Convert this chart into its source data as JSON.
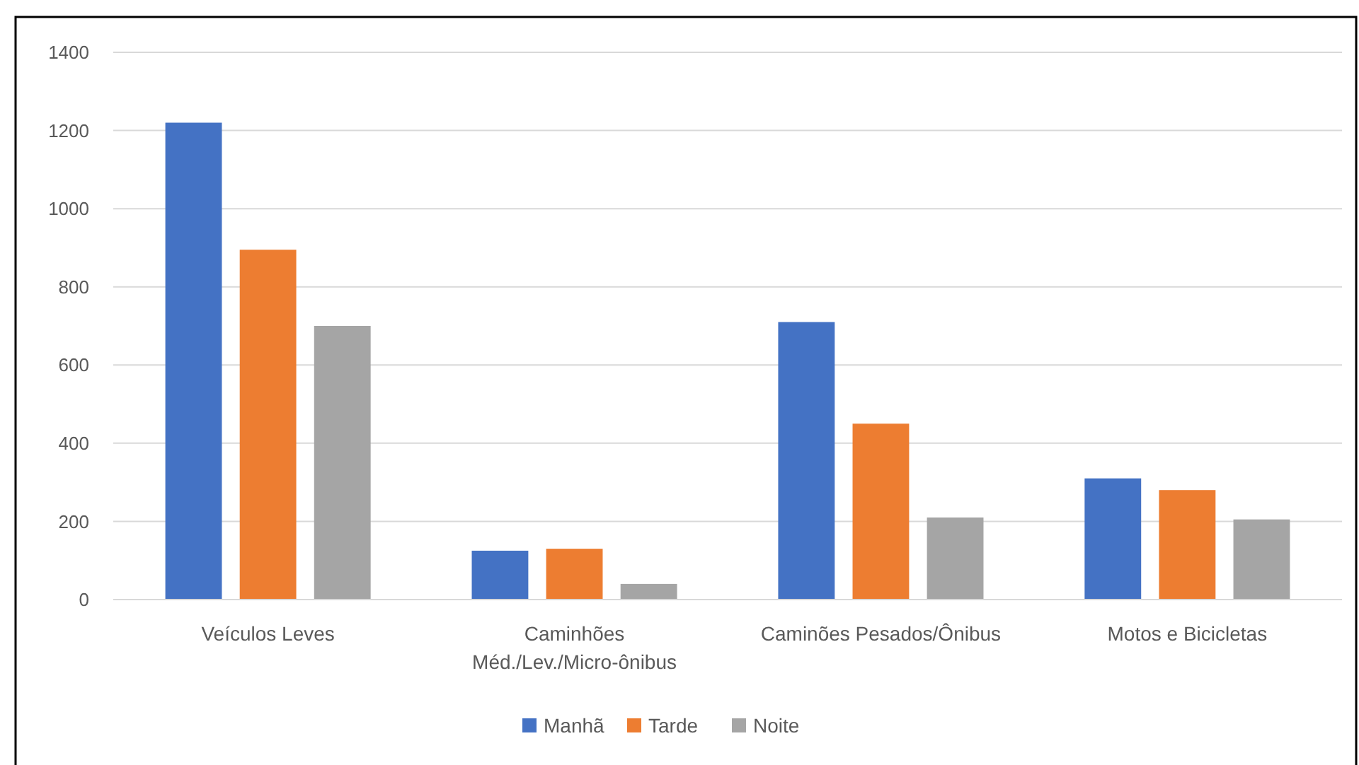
{
  "chart_data": {
    "type": "bar",
    "categories": [
      "Veículos Leves",
      "Caminhões Méd./Lev./Micro-ônibus",
      "Caminões Pesados/Ônibus",
      "Motos e Bicicletas"
    ],
    "series": [
      {
        "name": "Manhã",
        "color": "#4472c4",
        "values": [
          1220,
          125,
          710,
          310
        ]
      },
      {
        "name": "Tarde",
        "color": "#ed7d31",
        "values": [
          895,
          130,
          450,
          280
        ]
      },
      {
        "name": "Noite",
        "color": "#a5a5a5",
        "values": [
          700,
          40,
          210,
          205
        ]
      }
    ],
    "ylim": [
      0,
      1400
    ],
    "yticks": [
      0,
      200,
      400,
      600,
      800,
      1000,
      1200,
      1400
    ],
    "grid": "y",
    "legend": "bottom"
  }
}
